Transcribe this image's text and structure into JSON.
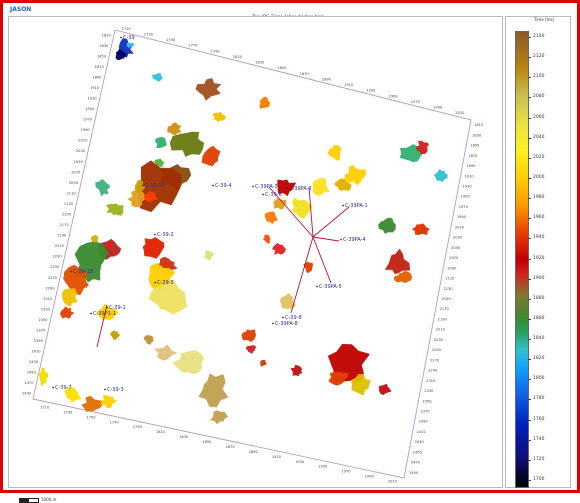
{
  "app": {
    "name": "JASON"
  },
  "map": {
    "title": "Top (BC_Final_1(hor_bodies.hor)",
    "scale_label": "1000 m",
    "well_color": "#c0102a",
    "label_color": "#2a2a9a",
    "grid_labels": {
      "top": [
        "1710",
        "1730",
        "1750",
        "1770",
        "1790",
        "1810",
        "1830",
        "1850",
        "1870",
        "1890",
        "1910",
        "1930",
        "1950",
        "1970",
        "1990",
        "2010"
      ],
      "left": [
        "1810",
        "1830",
        "1850",
        "1870",
        "1890",
        "1910",
        "1930",
        "1950",
        "1970",
        "1990",
        "2010",
        "2030",
        "2050",
        "2070",
        "2090",
        "2110",
        "2130",
        "2150",
        "2170",
        "2190",
        "2210",
        "2230",
        "2250",
        "2270",
        "2290",
        "2310",
        "2330",
        "2350",
        "2370",
        "2390",
        "2410",
        "2430",
        "2450",
        "2470",
        "2490"
      ],
      "bottom": [
        "1710",
        "1730",
        "1750",
        "1770",
        "1790",
        "1810",
        "1830",
        "1850",
        "1870",
        "1890",
        "1910",
        "1930",
        "1950",
        "1970",
        "1990",
        "2010"
      ],
      "right": [
        "1810",
        "1830",
        "1850",
        "1870",
        "1890",
        "1910",
        "1930",
        "1950",
        "1970",
        "1990",
        "2010",
        "2030",
        "2050",
        "2070",
        "2090",
        "2110",
        "2130",
        "2150",
        "2170",
        "2190",
        "2210",
        "2230",
        "2250",
        "2270",
        "2290",
        "2310",
        "2330",
        "2350",
        "2370",
        "2390",
        "2410",
        "2430",
        "2450",
        "2470",
        "2490"
      ]
    },
    "wells": [
      {
        "name": "C-39"
      },
      {
        "name": "C-39-4"
      },
      {
        "name": "C-39PA-3"
      },
      {
        "name": "C-39-6"
      },
      {
        "name": "C-39PA-2"
      },
      {
        "name": "C-39PA-1"
      },
      {
        "name": "C-39PA-4"
      },
      {
        "name": "C-39PA-5"
      },
      {
        "name": "C-39-8"
      },
      {
        "name": "C-39PA-8"
      },
      {
        "name": "C-39-2"
      },
      {
        "name": "C-39-5"
      },
      {
        "name": "C-39-1"
      },
      {
        "name": "C-39P1-1"
      },
      {
        "name": "C-39-7"
      },
      {
        "name": "C-39-3"
      },
      {
        "name": "C-39-13"
      },
      {
        "name": "C-39-10"
      }
    ]
  },
  "legend": {
    "title": "Time [ms]",
    "ticks": [
      "2140",
      "2120",
      "2100",
      "2080",
      "2060",
      "2040",
      "2020",
      "2000",
      "1980",
      "1960",
      "1940",
      "1920",
      "1900",
      "1880",
      "1860",
      "1840",
      "1820",
      "1800",
      "1780",
      "1760",
      "1740",
      "1720",
      "1700"
    ]
  }
}
